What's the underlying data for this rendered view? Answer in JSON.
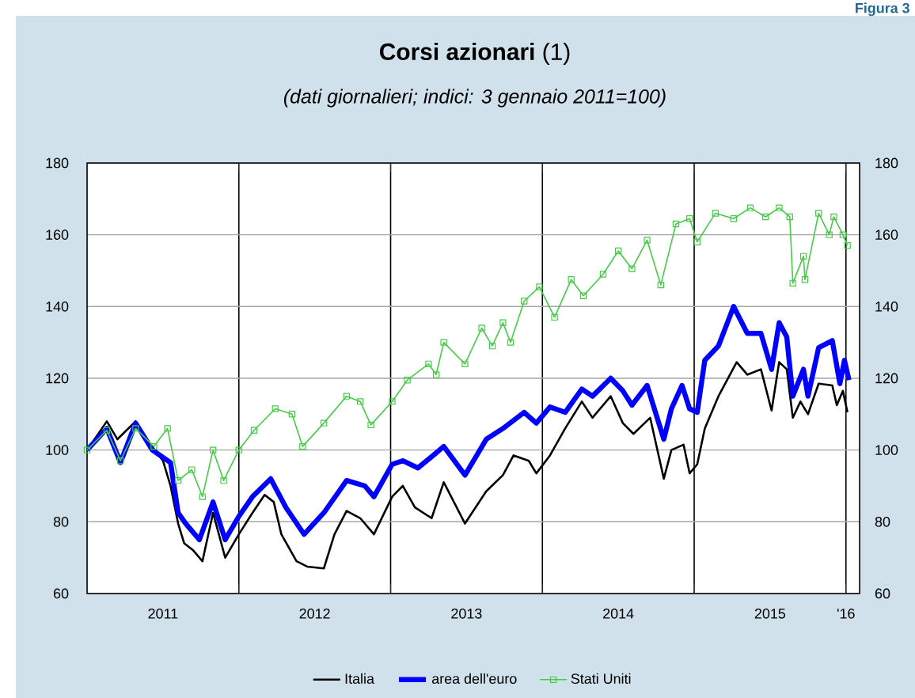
{
  "chart_data": {
    "type": "line",
    "title": "**Corsi azionari** (1)",
    "subtitle": "(dati giornalieri; indici: 3 gennaio 2011=100)",
    "annotations": [
      "Figura 3"
    ],
    "xlim": [
      2011.0,
      2016.09
    ],
    "xticks": [
      {
        "value": 2011.5,
        "label": "2011"
      },
      {
        "value": 2012,
        "label": null
      },
      {
        "value": 2012.5,
        "label": "2012"
      },
      {
        "value": 2013,
        "label": null
      },
      {
        "value": 2013.5,
        "label": "2013"
      },
      {
        "value": 2014,
        "label": null
      },
      {
        "value": 2014.5,
        "label": "2014"
      },
      {
        "value": 2015,
        "label": null
      },
      {
        "value": 2015.5,
        "label": "2015"
      },
      {
        "value": 2016,
        "label": null
      },
      {
        "value": 2016.0,
        "label": "'16"
      }
    ],
    "ylim": [
      60,
      180
    ],
    "yticks": [
      60,
      80,
      100,
      120,
      140,
      160,
      180
    ],
    "y2lim": [
      60,
      180
    ],
    "y2ticks": [
      60,
      80,
      100,
      120,
      140,
      160,
      180
    ],
    "grid": true,
    "legend": "bottom",
    "series": [
      {
        "name": "Italia",
        "color": "#000000",
        "marker": "none",
        "x": [
          2011.0,
          2011.13,
          2011.2,
          2011.32,
          2011.41,
          2011.5,
          2011.55,
          2011.6,
          2011.64,
          2011.7,
          2011.76,
          2011.83,
          2011.91,
          2012.0,
          2012.09,
          2012.17,
          2012.23,
          2012.28,
          2012.38,
          2012.45,
          2012.56,
          2012.63,
          2012.71,
          2012.8,
          2012.89,
          2013.01,
          2013.08,
          2013.16,
          2013.27,
          2013.35,
          2013.49,
          2013.63,
          2013.74,
          2013.81,
          2013.91,
          2013.96,
          2014.05,
          2014.15,
          2014.26,
          2014.33,
          2014.45,
          2014.53,
          2014.6,
          2014.71,
          2014.8,
          2014.85,
          2014.93,
          2014.97,
          2015.02,
          2015.07,
          2015.16,
          2015.28,
          2015.35,
          2015.44,
          2015.51,
          2015.56,
          2015.61,
          2015.65,
          2015.7,
          2015.75,
          2015.82,
          2015.91,
          2015.94,
          2015.98,
          2016.01
        ],
        "values": [
          100,
          108,
          103,
          108,
          102,
          97,
          90,
          79.5,
          74,
          72,
          69,
          82.5,
          70,
          76.5,
          82.5,
          87.5,
          85.5,
          76.5,
          69,
          67.5,
          67,
          76.5,
          83,
          81,
          76.5,
          87,
          90,
          84,
          81,
          91,
          79.5,
          88.5,
          93,
          98.5,
          97,
          93.5,
          98.5,
          106,
          113.5,
          109,
          115,
          107.5,
          104.5,
          109,
          92,
          100,
          101.5,
          93.5,
          96,
          106,
          115,
          124.5,
          121,
          122.5,
          111,
          124.5,
          122.5,
          109,
          113.5,
          110,
          118.5,
          118,
          112.5,
          116.5,
          110.5
        ]
      },
      {
        "name": "area dell'euro",
        "color": "#0000ff",
        "marker": "none",
        "x": [
          2011.0,
          2011.13,
          2011.22,
          2011.32,
          2011.43,
          2011.55,
          2011.6,
          2011.65,
          2011.74,
          2011.83,
          2011.91,
          2012.0,
          2012.09,
          2012.21,
          2012.31,
          2012.43,
          2012.56,
          2012.71,
          2012.83,
          2012.89,
          2013.01,
          2013.08,
          2013.18,
          2013.28,
          2013.35,
          2013.49,
          2013.63,
          2013.74,
          2013.88,
          2013.96,
          2014.05,
          2014.15,
          2014.26,
          2014.33,
          2014.45,
          2014.53,
          2014.59,
          2014.69,
          2014.8,
          2014.85,
          2014.92,
          2014.97,
          2015.02,
          2015.07,
          2015.16,
          2015.26,
          2015.35,
          2015.44,
          2015.51,
          2015.56,
          2015.61,
          2015.65,
          2015.72,
          2015.75,
          2015.82,
          2015.91,
          2015.96,
          2015.99,
          2016.02
        ],
        "values": [
          100,
          106,
          96.5,
          107.5,
          100,
          96.5,
          82.5,
          79.5,
          75,
          85.5,
          75,
          81.5,
          87,
          92,
          84,
          76.5,
          82.5,
          91.5,
          90,
          87,
          96,
          97,
          95,
          98.5,
          101,
          93,
          103,
          106,
          110.5,
          107.5,
          112,
          110.5,
          117,
          115,
          120,
          116.5,
          112.5,
          118,
          103,
          111.5,
          118,
          111.5,
          110.5,
          125,
          129,
          140,
          132.5,
          132.5,
          122.5,
          135.5,
          131.5,
          115,
          122.5,
          115,
          128.5,
          130.5,
          118.5,
          125,
          119.5
        ]
      },
      {
        "name": "Stati Uniti",
        "color": "#44cc44",
        "marker": "square",
        "x": [
          2011.0,
          2011.13,
          2011.22,
          2011.32,
          2011.44,
          2011.53,
          2011.6,
          2011.69,
          2011.76,
          2011.83,
          2011.9,
          2012.0,
          2012.1,
          2012.24,
          2012.35,
          2012.42,
          2012.56,
          2012.71,
          2012.8,
          2012.87,
          2013.01,
          2013.11,
          2013.25,
          2013.3,
          2013.35,
          2013.49,
          2013.6,
          2013.67,
          2013.74,
          2013.79,
          2013.88,
          2013.98,
          2014.08,
          2014.19,
          2014.27,
          2014.4,
          2014.5,
          2014.59,
          2014.69,
          2014.78,
          2014.88,
          2014.97,
          2015.02,
          2015.14,
          2015.26,
          2015.37,
          2015.47,
          2015.56,
          2015.63,
          2015.65,
          2015.72,
          2015.73,
          2015.82,
          2015.89,
          2015.92,
          2015.98,
          2016.01
        ],
        "values": [
          100,
          105.5,
          97,
          106,
          101,
          106,
          91.5,
          94.5,
          87,
          100,
          91.5,
          100,
          105.5,
          111.5,
          110,
          101,
          107.5,
          115,
          113.5,
          107,
          113.5,
          119.5,
          124,
          121,
          130,
          124,
          134,
          129,
          135.5,
          130,
          141.5,
          145.5,
          137,
          147.5,
          143,
          149,
          155.5,
          150.5,
          158.5,
          146,
          163,
          164.5,
          158,
          166,
          164.5,
          167.5,
          165,
          167.5,
          165,
          146.5,
          154,
          147.5,
          166,
          160,
          165,
          160,
          157
        ]
      }
    ]
  }
}
